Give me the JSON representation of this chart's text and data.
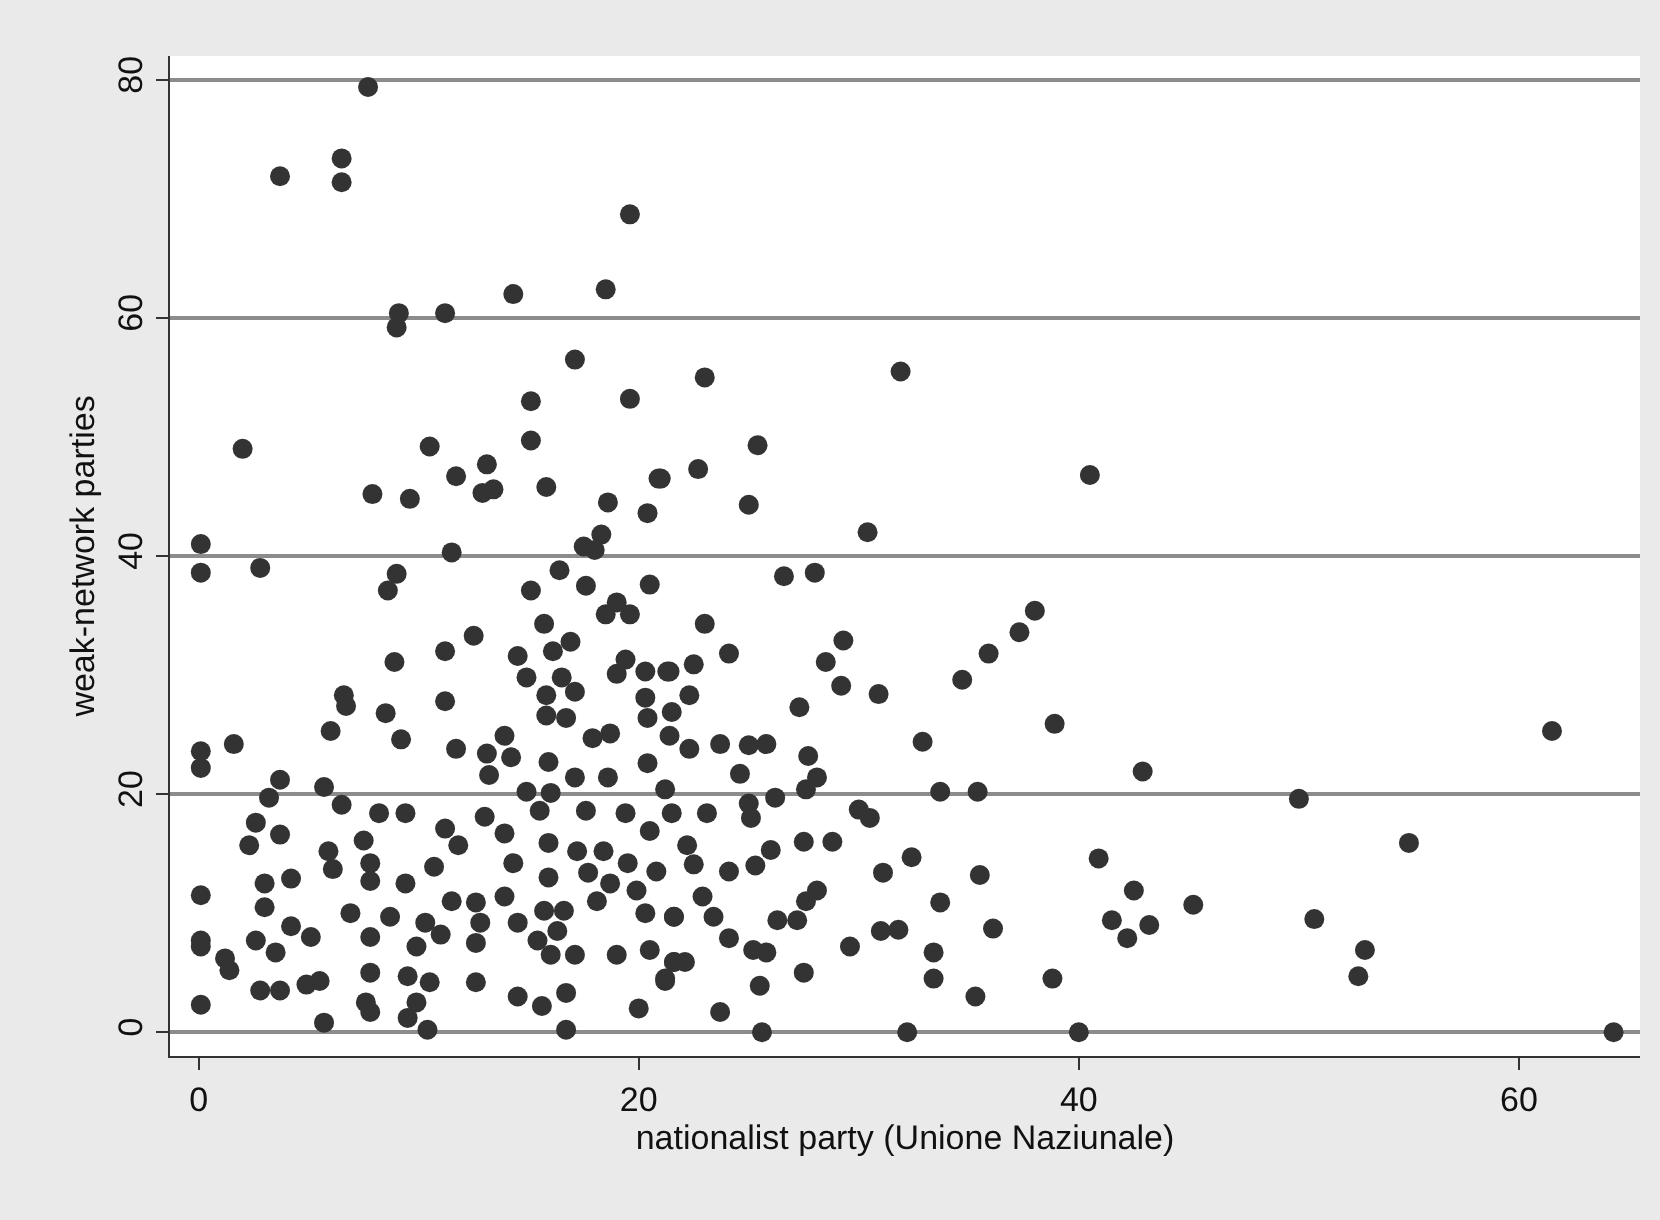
{
  "chart_data": {
    "type": "scatter",
    "xlabel": "nationalist party (Unione Naziunale)",
    "ylabel": "weak-network parties",
    "xlim": [
      -1.3,
      65.5
    ],
    "ylim": [
      -2,
      82
    ],
    "xticks": [
      0,
      20,
      40,
      60
    ],
    "yticks": [
      0,
      20,
      40,
      60,
      80
    ],
    "grid": "y",
    "marker": "circle",
    "series": [
      {
        "color": "#333333",
        "x": [
          23,
          31.9,
          25.4,
          25,
          22.7,
          21,
          40.5,
          30.4,
          26.6,
          28,
          38,
          37.3,
          35.9,
          34.7,
          38.9,
          61.5,
          42.9,
          50,
          33.7,
          35.4,
          55,
          40.9,
          42.5,
          43.2,
          41.5,
          42.2,
          45.2,
          50.7,
          53,
          52.7,
          64.3,
          40,
          32.2,
          25.6,
          38.8,
          35.3,
          33.4,
          33.4,
          36.1,
          35.5,
          33.7,
          32.4,
          31.1,
          31,
          31.8,
          29.6,
          28.8,
          27.5,
          27.5,
          28.1,
          27.6,
          27.2,
          26.3,
          25.8,
          25.2,
          25.5,
          23.7,
          24.1,
          23.4,
          22.9,
          21.6,
          21.2,
          21.6,
          25.3,
          26,
          24.1,
          22.5,
          22.2,
          23.1,
          21.5,
          25,
          25.1,
          26.2,
          27.6,
          28.1,
          30,
          30.5,
          27.7,
          27.3,
          23.7,
          25,
          25.8,
          22.3,
          24.6,
          22.3,
          21.4,
          22.5,
          23,
          24.1,
          28.5,
          29.3,
          29.2,
          30.9,
          32.9,
          7.7,
          6.5,
          6.5,
          3.7,
          19.6,
          18.5,
          14.3,
          9.1,
          9,
          11.2,
          17.1,
          15.1,
          19.6,
          15.1,
          2,
          10.5,
          13.1,
          11.7,
          12.9,
          13.4,
          15.8,
          7.9,
          9.6,
          18.6,
          20.9,
          20.4,
          0.1,
          11.5,
          17.5,
          18.3,
          18,
          0.1,
          2.8,
          9,
          8.6,
          15.1,
          16.4,
          17.6,
          20.5,
          19,
          18.5,
          19.6,
          15.7,
          12.5,
          11.2,
          8.9,
          14.5,
          14.9,
          16.9,
          16.1,
          16.5,
          17.1,
          15.8,
          19.4,
          19,
          20.3,
          21.3,
          20.3,
          21.5,
          20.4,
          15.8,
          16.7,
          21.4,
          18.7,
          17.9,
          6.6,
          6.7,
          8.5,
          6,
          9.2,
          11.2,
          13.9,
          14.2,
          13.1,
          11.7,
          15.9,
          17.1,
          13.2,
          18.6,
          20.4,
          21.2,
          0.1,
          0.1,
          1.6,
          3.7,
          3.2,
          5.7,
          6.5,
          2.6,
          3.7,
          2.3,
          5.9,
          6.1,
          3,
          4.2,
          0.1,
          3,
          8.2,
          9.4,
          7.5,
          7.8,
          11.2,
          11.8,
          10.7,
          13,
          13.9,
          14.9,
          16,
          15.5,
          14.3,
          15.9,
          15.9,
          17.6,
          19.4,
          20.5,
          18.4,
          17.2,
          17.7,
          19.5,
          20.8,
          18.7,
          19.9,
          7.8,
          9.4,
          11.5,
          12.6,
          6.9,
          8.7,
          10.3,
          11,
          12.8,
          13.9,
          15.7,
          16.6,
          18.1,
          20.3,
          21.6,
          0.1,
          0.1,
          1.2,
          1.4,
          2.6,
          4.2,
          5.1,
          3.5,
          7.8,
          9.9,
          12.6,
          15.4,
          16.3,
          14.5,
          16,
          17.1,
          19,
          20.5,
          21.6,
          21.2,
          2.8,
          3.7,
          4.9,
          5.5,
          7.8,
          9.5,
          10.5,
          12.6,
          0.1,
          5.7,
          7.6,
          7.8,
          9.5,
          9.9,
          10.4,
          14.5,
          15.6,
          16.7,
          16.7,
          20,
          22.1
        ],
        "values": [
          55,
          55.5,
          49.3,
          44.3,
          47.3,
          46.5,
          46.8,
          42,
          38.3,
          38.6,
          35.4,
          33.6,
          31.8,
          29.6,
          25.9,
          25.3,
          21.9,
          19.6,
          20.2,
          20.2,
          15.9,
          14.6,
          11.9,
          9,
          9.4,
          7.9,
          10.7,
          9.5,
          6.9,
          4.7,
          0,
          0,
          0,
          0,
          4.5,
          3,
          4.5,
          6.7,
          8.7,
          13.2,
          10.9,
          14.7,
          13.4,
          8.5,
          8.6,
          7.2,
          16,
          16,
          5,
          11.9,
          11,
          9.4,
          9.4,
          6.7,
          6.9,
          3.9,
          1.7,
          7.9,
          9.7,
          11.4,
          9.7,
          4.3,
          5.9,
          14,
          15.3,
          13.5,
          14.1,
          15.7,
          18.4,
          18.4,
          19.2,
          18,
          19.7,
          20.4,
          21.4,
          18.7,
          18,
          23.2,
          27.3,
          24.2,
          24.1,
          24.2,
          23.8,
          21.7,
          28.3,
          30.3,
          30.9,
          34.3,
          31.8,
          31.1,
          32.9,
          29.1,
          28.4,
          24.4,
          79.4,
          73.4,
          71.4,
          71.9,
          68.7,
          62.4,
          62,
          60.4,
          59.2,
          60.4,
          56.5,
          53,
          53.2,
          49.7,
          49,
          49.2,
          47.7,
          46.7,
          45.3,
          45.6,
          45.8,
          45.2,
          44.8,
          44.5,
          46.5,
          43.6,
          41,
          40.3,
          40.8,
          41.8,
          40.5,
          38.6,
          39,
          38.5,
          37.1,
          37.1,
          38.8,
          37.5,
          37.6,
          36.1,
          35.1,
          35.1,
          34.3,
          33.3,
          32,
          31.1,
          31.6,
          29.8,
          32.8,
          32,
          29.8,
          28.6,
          28.3,
          31.3,
          30.1,
          30.3,
          30.3,
          28.1,
          26.9,
          26.4,
          26.6,
          26.4,
          24.9,
          25.1,
          24.7,
          28.3,
          27.4,
          26.8,
          25.3,
          24.6,
          27.8,
          24.9,
          23.1,
          23.4,
          23.8,
          22.7,
          21.4,
          21.6,
          21.4,
          22.6,
          20.4,
          23.6,
          22.2,
          24.2,
          21.2,
          19.7,
          20.6,
          19.1,
          17.6,
          16.6,
          15.7,
          15.2,
          13.7,
          12.5,
          12.9,
          11.5,
          10.5,
          18.4,
          18.4,
          16.1,
          14.2,
          17.1,
          15.7,
          13.9,
          18.1,
          16.7,
          20.2,
          20.1,
          18.6,
          14.2,
          15.9,
          13,
          18.6,
          18.4,
          16.9,
          15.2,
          15.2,
          13.4,
          14.2,
          13.5,
          12.5,
          11.9,
          12.7,
          12.5,
          11,
          10.9,
          10,
          9.7,
          9.2,
          8.2,
          9.2,
          11.4,
          10.2,
          10.2,
          11,
          10,
          9.7,
          7.7,
          7.2,
          6.2,
          5.2,
          7.7,
          8.9,
          8,
          6.7,
          8,
          7.2,
          7.5,
          7.7,
          8.5,
          9.2,
          6.5,
          6.5,
          6.5,
          6.9,
          5.9,
          4.5,
          3.5,
          3.5,
          4,
          4.3,
          5,
          4.7,
          4.2,
          4.2,
          2.3,
          0.8,
          2.5,
          1.7,
          1.2,
          2.5,
          0.2,
          3,
          2.2,
          3.3,
          0.2,
          2,
          5.9
        ]
      }
    ]
  }
}
